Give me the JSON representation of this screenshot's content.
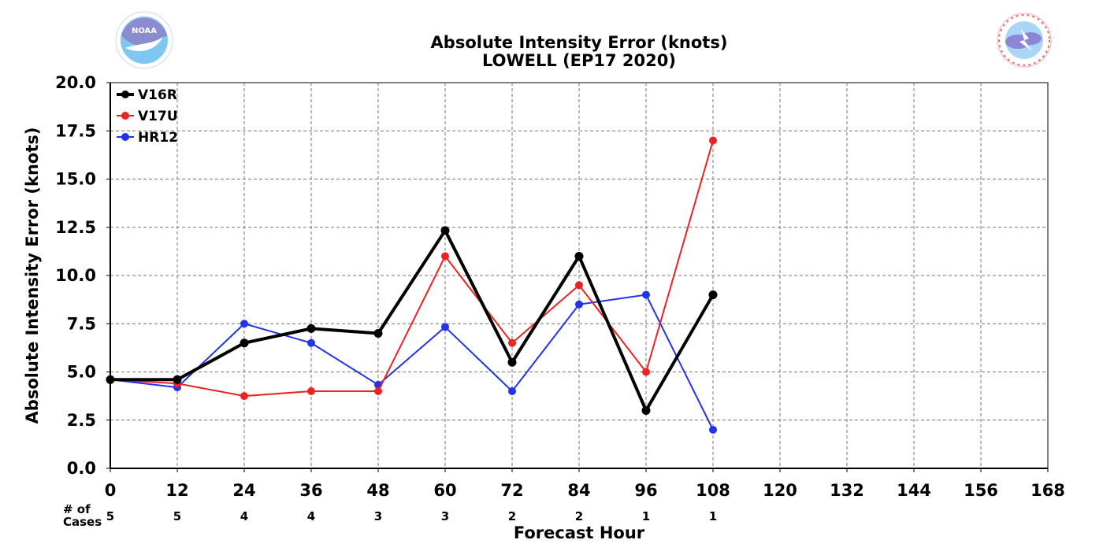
{
  "chart_data": {
    "type": "line",
    "title": "Absolute Intensity Error (knots)",
    "subtitle": "LOWELL (EP17 2020)",
    "xlabel": "Forecast Hour",
    "ylabel": "Absolute Intensity Error (knots)",
    "xlim": [
      0,
      168
    ],
    "ylim": [
      0,
      20
    ],
    "x_ticks": [
      "0",
      "12",
      "24",
      "36",
      "48",
      "60",
      "72",
      "84",
      "96",
      "108",
      "120",
      "132",
      "144",
      "156",
      "168"
    ],
    "y_ticks": [
      "0.0",
      "2.5",
      "5.0",
      "7.5",
      "10.0",
      "12.5",
      "15.0",
      "17.5",
      "20.0"
    ],
    "grid": true,
    "legend_position": "top-left",
    "cases_label": "# of\nCases",
    "cases": [
      {
        "x": 0,
        "n": "5"
      },
      {
        "x": 12,
        "n": "5"
      },
      {
        "x": 24,
        "n": "4"
      },
      {
        "x": 36,
        "n": "4"
      },
      {
        "x": 48,
        "n": "3"
      },
      {
        "x": 60,
        "n": "3"
      },
      {
        "x": 72,
        "n": "2"
      },
      {
        "x": 84,
        "n": "2"
      },
      {
        "x": 96,
        "n": "1"
      },
      {
        "x": 108,
        "n": "1"
      }
    ],
    "series": [
      {
        "name": "V16R",
        "color": "#000000",
        "x": [
          0,
          12,
          24,
          36,
          48,
          60,
          72,
          84,
          96,
          108
        ],
        "values": [
          4.6,
          4.6,
          6.5,
          7.25,
          7.0,
          12.33,
          5.5,
          11.0,
          3.0,
          9.0
        ]
      },
      {
        "name": "V17U",
        "color": "#ee2222",
        "x": [
          0,
          12,
          24,
          36,
          48,
          60,
          72,
          84,
          96,
          108
        ],
        "values": [
          4.6,
          4.4,
          3.75,
          4.0,
          4.0,
          11.0,
          6.5,
          9.5,
          5.0,
          17.0
        ]
      },
      {
        "name": "HR12",
        "color": "#2233ee",
        "x": [
          0,
          12,
          24,
          36,
          48,
          60,
          72,
          84,
          96,
          108
        ],
        "values": [
          4.6,
          4.2,
          7.5,
          6.5,
          4.33,
          7.33,
          4.0,
          8.5,
          9.0,
          2.0
        ]
      }
    ]
  },
  "logos": {
    "left": {
      "name": "NOAA",
      "text": "NOAA",
      "color": "#7fb8ea"
    },
    "right": {
      "name": "National Weather Service",
      "text": "NATIONAL WEATHER SERVICE",
      "color": "#e46a6a"
    }
  }
}
